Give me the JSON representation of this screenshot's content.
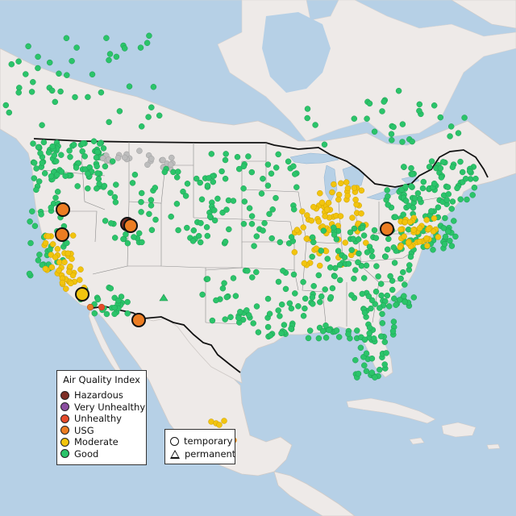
{
  "colors": {
    "ocean": "#b6d0e6",
    "land": "#eeeae8",
    "hazardous": "#7e2f26",
    "very_unhealthy": "#8b4ea0",
    "unhealthy": "#e64a2a",
    "usg": "#ec7d23",
    "moderate": "#f2c40e",
    "good": "#2bc46a",
    "no_data": "#bdbdbd"
  },
  "aqi_legend": {
    "title": "Air Quality Index",
    "items": [
      {
        "label": "Hazardous",
        "color": "#7e2f26"
      },
      {
        "label": "Very Unhealthy",
        "color": "#8b4ea0"
      },
      {
        "label": "Unhealthy",
        "color": "#e64a2a"
      },
      {
        "label": "USG",
        "color": "#ec7d23"
      },
      {
        "label": "Moderate",
        "color": "#f2c40e"
      },
      {
        "label": "Good",
        "color": "#2bc46a"
      }
    ]
  },
  "monitor_legend": {
    "temporary": "temporary",
    "permanent": "permanent"
  }
}
